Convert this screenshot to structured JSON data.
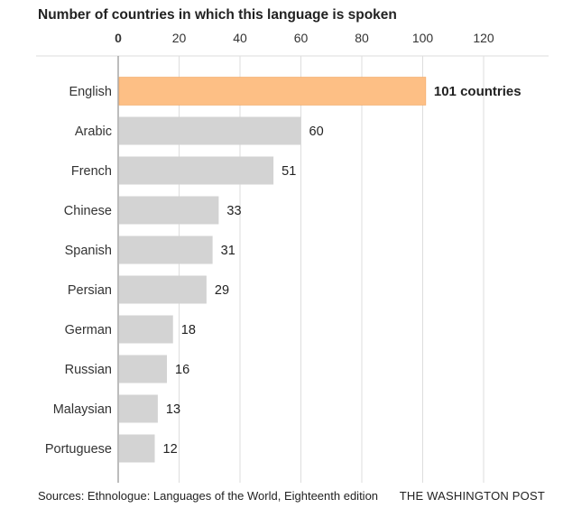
{
  "chart_data": {
    "type": "bar",
    "orientation": "horizontal",
    "title": "Number of countries in which this language is spoken",
    "categories": [
      "English",
      "Arabic",
      "French",
      "Chinese",
      "Spanish",
      "Persian",
      "German",
      "Russian",
      "Malaysian",
      "Portuguese"
    ],
    "values": [
      101,
      60,
      51,
      33,
      31,
      29,
      18,
      16,
      13,
      12
    ],
    "value_labels": [
      "101 countries",
      "60",
      "51",
      "33",
      "31",
      "29",
      "18",
      "16",
      "13",
      "12"
    ],
    "highlight_index": 0,
    "xlim": [
      0,
      120
    ],
    "x_ticks": [
      0,
      20,
      40,
      60,
      80,
      100,
      120
    ],
    "x_tick_labels": [
      "0",
      "20",
      "40",
      "60",
      "80",
      "100",
      "120"
    ],
    "x_axis_position": "top",
    "grid": true,
    "colors": {
      "highlight": "#fdbf85",
      "highlight_border": "#f2a965",
      "bar": "#d3d3d3",
      "grid": "#dddddd",
      "axis": "#999999"
    }
  },
  "footer": {
    "source": "Sources: Ethnologue: Languages of the World, Eighteenth edition",
    "publisher": "THE WASHINGTON POST"
  }
}
